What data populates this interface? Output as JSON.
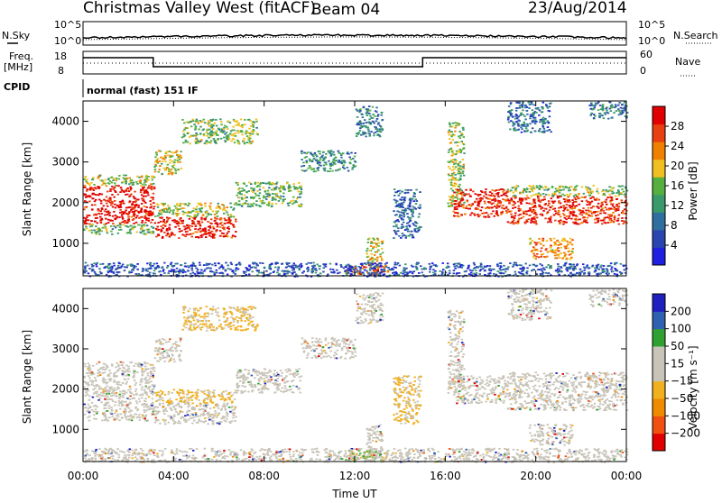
{
  "header": {
    "station_title": "Christmas Valley West (fitACF)",
    "beam": "Beam 04",
    "date": "23/Aug/2014"
  },
  "strip_labels": {
    "nsky": "N.Sky",
    "nsearch": "N.Search",
    "freq": "Freq.",
    "freq_unit": "[MHz]",
    "nave": "Nave",
    "cpid": "CPID",
    "cpid_value": "normal (fast) 151 IF"
  },
  "strip_ticks": {
    "noise_left": [
      "10^5",
      "10^0"
    ],
    "noise_right": [
      "10^5",
      "10^0"
    ],
    "freq_left": [
      "18",
      "8"
    ],
    "nave_right": [
      "60",
      "0"
    ]
  },
  "colors": {
    "power_scale": [
      "#2020e0",
      "#2a45b0",
      "#2f6fa0",
      "#3a9a6a",
      "#55b040",
      "#f0c020",
      "#f08000",
      "#e84010",
      "#e00000"
    ],
    "velocity_scale": [
      "#e00000",
      "#f05010",
      "#f08a00",
      "#f0b020",
      "#c8c4b8",
      "#c8c4b8",
      "#30a030",
      "#3060b0",
      "#2020c0"
    ]
  },
  "chart_data": [
    {
      "type": "heatmap",
      "panel": "power",
      "xlabel": "",
      "ylabel": "Slant Range [km]",
      "x_ticks": [
        "00:00",
        "04:00",
        "08:00",
        "12:00",
        "16:00",
        "20:00",
        "00:00"
      ],
      "y_ticks": [
        "1000",
        "2000",
        "3000",
        "4000"
      ],
      "ylim": [
        200,
        4500
      ],
      "colorbar_label": "Power [dB]",
      "colorbar_ticks": [
        "28",
        "24",
        "20",
        "16",
        "12",
        "8",
        "4"
      ],
      "clim": [
        0,
        30
      ]
    },
    {
      "type": "heatmap",
      "panel": "velocity",
      "xlabel": "Time UT",
      "ylabel": "Slant Range [km]",
      "x_ticks": [
        "00:00",
        "04:00",
        "08:00",
        "12:00",
        "16:00",
        "20:00",
        "00:00"
      ],
      "y_ticks": [
        "1000",
        "2000",
        "3000",
        "4000"
      ],
      "ylim": [
        200,
        4500
      ],
      "colorbar_label": "Velocity [m s⁻¹]",
      "colorbar_ticks": [
        "200",
        "100",
        "50",
        "15",
        "−15",
        "−50",
        "−100",
        "−200"
      ],
      "clim": [
        -250,
        250
      ]
    }
  ]
}
